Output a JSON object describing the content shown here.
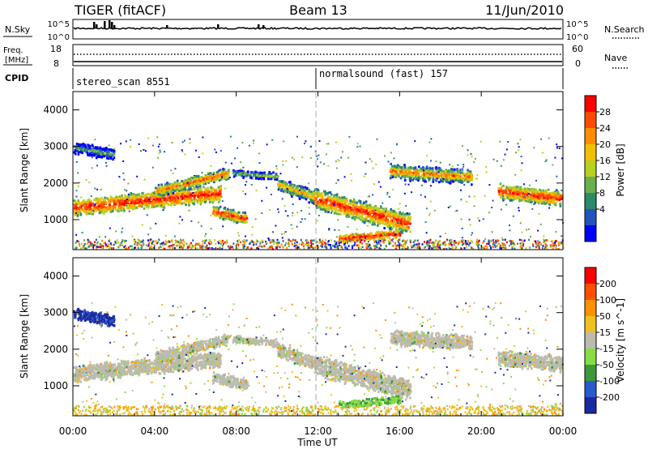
{
  "header": {
    "radar": "TIGER (fitACF)",
    "beam": "Beam 13",
    "date": "11/Jun/2010"
  },
  "strip": {
    "nsky_label": "N.Sky",
    "nsearch_label": "N.Search",
    "nsky_ticks": [
      "10^5",
      "10^0"
    ],
    "nsky_right_ticks": [
      "10^5",
      "10^0"
    ],
    "freq_label_1": "Freq.",
    "freq_label_2": "[MHz]",
    "freq_ticks": [
      "18",
      "8"
    ],
    "nave_ticks": [
      "60",
      "0"
    ],
    "nave_label": "Nave",
    "cpid_label": "CPID",
    "cpid_1": "stereo_scan 8551",
    "cpid_2": "normalsound (fast) 157"
  },
  "chart_data": [
    {
      "type": "heatmap",
      "name": "power",
      "ylabel": "Slant Range [km]",
      "ylim": [
        180,
        4500
      ],
      "yticks": [
        "4000",
        "3000",
        "2000",
        "1000"
      ],
      "colorbar_label": "Power [dB]",
      "colorbar_ticks": [
        "28",
        "24",
        "20",
        "16",
        "12",
        "8",
        "4"
      ],
      "colors": [
        "#0000ff",
        "#2255bb",
        "#2a8a6a",
        "#6ab04c",
        "#b8d020",
        "#f0c000",
        "#ff8c00",
        "#ff4a00",
        "#ff0000"
      ]
    },
    {
      "type": "heatmap",
      "name": "velocity",
      "ylabel": "Slant Range [km]",
      "ylim": [
        180,
        4500
      ],
      "yticks": [
        "4000",
        "3000",
        "2000",
        "1000"
      ],
      "colorbar_label": "Velocity [m s^-1]",
      "colorbar_ticks": [
        "200",
        "100",
        "50",
        "15",
        "-15",
        "-50",
        "-100",
        "-200"
      ],
      "colors": [
        "#1a2aa0",
        "#2a5ad0",
        "#3a9a3a",
        "#88dd44",
        "#bbbbb0",
        "#f0c020",
        "#ff9000",
        "#ff5000",
        "#ff0000"
      ]
    }
  ],
  "xaxis": {
    "label": "Time UT",
    "ticks": [
      "00:00",
      "04:00",
      "08:00",
      "12:00",
      "16:00",
      "20:00",
      "00:00"
    ]
  }
}
